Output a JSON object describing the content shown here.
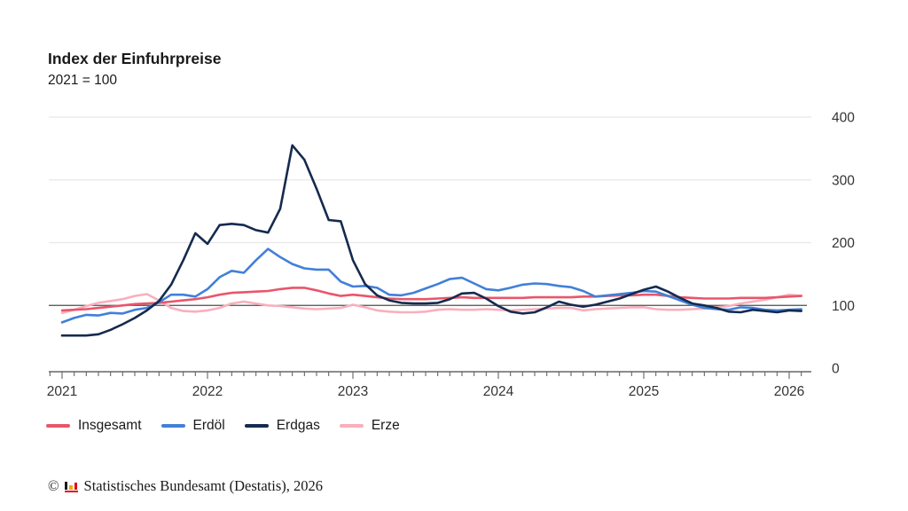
{
  "header": {
    "title": "Index der Einfuhrpreise",
    "subtitle": "2021 = 100"
  },
  "chart_data": {
    "type": "line",
    "x_start": "2021-01",
    "x_end": "2026-02",
    "x_year_ticks": [
      "2021",
      "2022",
      "2023",
      "2024",
      "2025",
      "2026"
    ],
    "y_ticks": [
      0,
      100,
      200,
      300,
      400
    ],
    "ylim": [
      0,
      400
    ],
    "baseline": 100,
    "grid": "horizontal-only",
    "legend_position": "bottom",
    "series": [
      {
        "name": "Insgesamt",
        "color": "#e8566b",
        "values": [
          92,
          93,
          94,
          96,
          98,
          100,
          102,
          103,
          104,
          106,
          108,
          110,
          113,
          117,
          120,
          121,
          122,
          123,
          126,
          128,
          128,
          124,
          119,
          115,
          117,
          115,
          113,
          111,
          110,
          110,
          110,
          111,
          112,
          113,
          112,
          112,
          112,
          112,
          112,
          113,
          113,
          113,
          113,
          114,
          114,
          115,
          116,
          116,
          117,
          117,
          115,
          113,
          112,
          111,
          111,
          111,
          112,
          112,
          112,
          113,
          114,
          115
        ]
      },
      {
        "name": "Erdöl",
        "color": "#4180d8",
        "values": [
          73,
          80,
          85,
          84,
          88,
          87,
          93,
          96,
          105,
          117,
          117,
          114,
          126,
          145,
          155,
          152,
          172,
          190,
          177,
          166,
          159,
          157,
          157,
          138,
          130,
          131,
          128,
          117,
          116,
          120,
          127,
          134,
          142,
          144,
          135,
          126,
          124,
          128,
          133,
          135,
          134,
          131,
          129,
          123,
          114,
          116,
          118,
          120,
          123,
          122,
          115,
          108,
          101,
          96,
          94,
          93,
          97,
          96,
          93,
          92,
          93,
          94
        ]
      },
      {
        "name": "Erdgas",
        "color": "#152a4e",
        "values": [
          52,
          52,
          52,
          54,
          61,
          70,
          80,
          92,
          107,
          133,
          172,
          215,
          198,
          228,
          230,
          228,
          220,
          216,
          254,
          355,
          332,
          286,
          236,
          234,
          172,
          134,
          116,
          108,
          104,
          103,
          103,
          104,
          110,
          119,
          120,
          111,
          99,
          90,
          87,
          89,
          97,
          106,
          101,
          98,
          101,
          106,
          111,
          118,
          125,
          130,
          122,
          112,
          103,
          100,
          96,
          90,
          89,
          93,
          91,
          89,
          92,
          91
        ]
      },
      {
        "name": "Erze",
        "color": "#f9afbc",
        "values": [
          88,
          93,
          99,
          104,
          107,
          110,
          115,
          118,
          108,
          96,
          91,
          90,
          92,
          96,
          103,
          106,
          103,
          100,
          99,
          97,
          95,
          94,
          95,
          96,
          101,
          97,
          92,
          90,
          89,
          89,
          90,
          93,
          94,
          93,
          93,
          94,
          93,
          92,
          93,
          94,
          95,
          96,
          96,
          92,
          94,
          95,
          96,
          97,
          97,
          94,
          93,
          93,
          94,
          95,
          97,
          99,
          103,
          106,
          109,
          113,
          117,
          115
        ]
      }
    ],
    "draw_order": [
      3,
      0,
      1,
      2
    ]
  },
  "legend": {
    "items": [
      {
        "label": "Insgesamt",
        "color": "#e8566b"
      },
      {
        "label": "Erdöl",
        "color": "#4180d8"
      },
      {
        "label": "Erdgas",
        "color": "#152a4e"
      },
      {
        "label": "Erze",
        "color": "#f9afbc"
      }
    ]
  },
  "footer": {
    "copyright": "©",
    "source": "Statistisches Bundesamt (Destatis), 2026"
  }
}
